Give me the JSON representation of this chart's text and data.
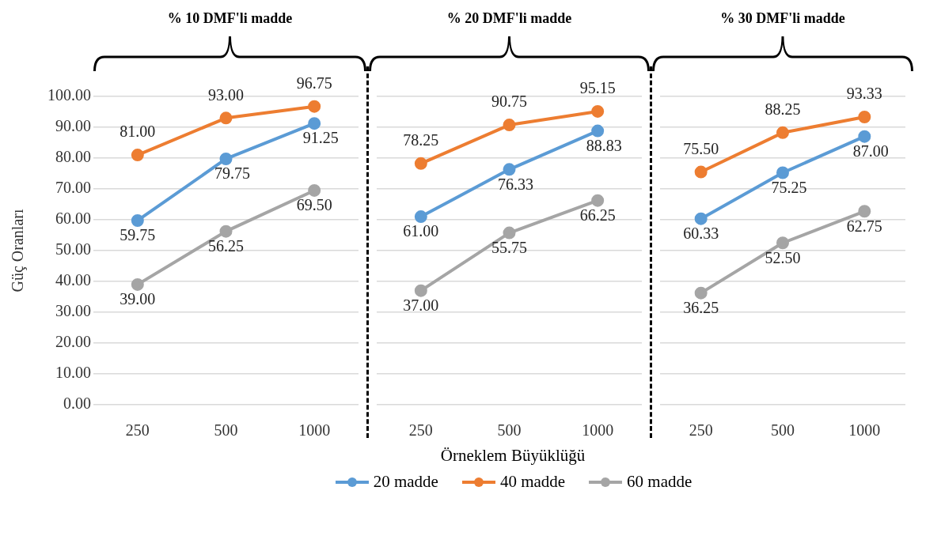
{
  "chart_data": [
    {
      "type": "line",
      "title": "% 10 DMF'li madde",
      "ylabel": "Güç Oranları",
      "legend": "bottom",
      "categories": [
        "250",
        "500",
        "1000"
      ],
      "ylim": [
        0,
        100
      ],
      "yticks": [
        {
          "value": 0,
          "label": "0.00"
        },
        {
          "value": 10,
          "label": "10.00"
        },
        {
          "value": 20,
          "label": "20.00"
        },
        {
          "value": 30,
          "label": "30.00"
        },
        {
          "value": 40,
          "label": "40.00"
        },
        {
          "value": 50,
          "label": "50.00"
        },
        {
          "value": 60,
          "label": "60.00"
        },
        {
          "value": 70,
          "label": "70.00"
        },
        {
          "value": 80,
          "label": "80.00"
        },
        {
          "value": 90,
          "label": "90.00"
        },
        {
          "value": 100,
          "label": "100.00"
        }
      ],
      "grid": "y",
      "marker": "circle",
      "series": [
        {
          "name": "20 madde",
          "color": "#5b9bd5",
          "values": [
            59.75,
            79.75,
            91.25
          ],
          "value_labels": [
            "59.75",
            "79.75",
            "91.25"
          ]
        },
        {
          "name": "40 madde",
          "color": "#ed7d31",
          "values": [
            81,
            93,
            96.75
          ],
          "value_labels": [
            "81.00",
            "93.00",
            "96.75"
          ]
        },
        {
          "name": "60 madde",
          "color": "#a5a5a5",
          "values": [
            39,
            56.25,
            69.5
          ],
          "value_labels": [
            "39.00",
            "56.25",
            "69.50"
          ]
        }
      ]
    },
    {
      "type": "line",
      "title": "% 20 DMF'li madde",
      "xlabel": "Örneklem Büyüklüğü",
      "tick_labels": "x",
      "categories": [
        "250",
        "500",
        "1000"
      ],
      "ylim": [
        0,
        100
      ],
      "yticks": [
        0,
        10,
        20,
        30,
        40,
        50,
        60,
        70,
        80,
        90,
        100
      ],
      "grid": "y",
      "marker": "circle",
      "series": [
        {
          "color": "#5b9bd5",
          "values": [
            61,
            76.33,
            88.83
          ],
          "value_labels": [
            "61.00",
            "76.33",
            "88.83"
          ]
        },
        {
          "color": "#ed7d31",
          "values": [
            78.25,
            90.75,
            95.15
          ],
          "value_labels": [
            "78.25",
            "90.75",
            "95.15"
          ]
        },
        {
          "color": "#a5a5a5",
          "values": [
            37,
            55.75,
            66.25
          ],
          "value_labels": [
            "37.00",
            "55.75",
            "66.25"
          ]
        }
      ]
    },
    {
      "type": "line",
      "title": "% 30 DMF'li madde",
      "tick_labels": "x",
      "categories": [
        "250",
        "500",
        "1000"
      ],
      "ylim": [
        0,
        100
      ],
      "yticks": [
        0,
        10,
        20,
        30,
        40,
        50,
        60,
        70,
        80,
        90,
        100
      ],
      "grid": "y",
      "marker": "circle",
      "series": [
        {
          "color": "#5b9bd5",
          "values": [
            60.33,
            75.25,
            87
          ],
          "value_labels": [
            "60.33",
            "75.25",
            "87.00"
          ]
        },
        {
          "color": "#ed7d31",
          "values": [
            75.5,
            88.25,
            93.33
          ],
          "value_labels": [
            "75.50",
            "88.25",
            "93.33"
          ]
        },
        {
          "color": "#a5a5a5",
          "values": [
            36.25,
            52.5,
            62.75
          ],
          "value_labels": [
            "36.25",
            "52.50",
            "62.75"
          ]
        }
      ]
    }
  ]
}
